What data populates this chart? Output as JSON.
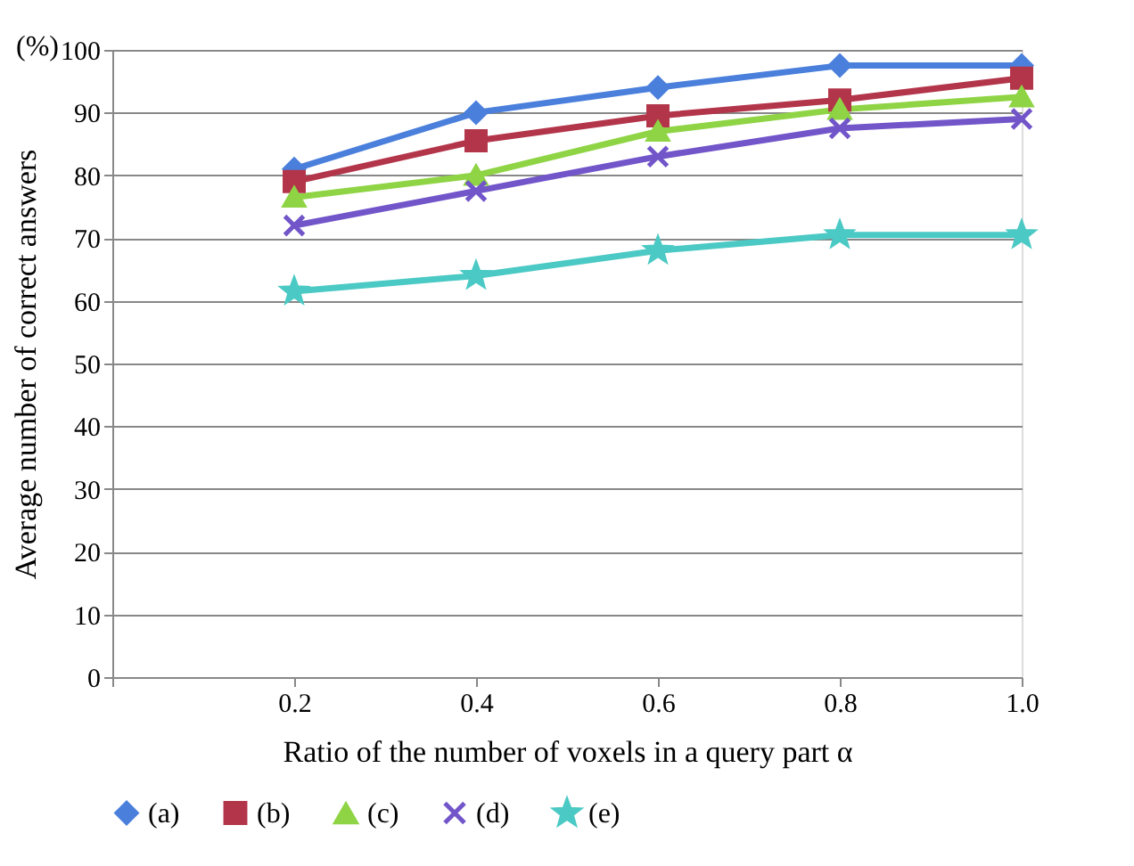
{
  "chart_data": {
    "type": "line",
    "xlabel": "Ratio of the number of voxels in a query part  α",
    "ylabel": "Average number of correct answers",
    "annotations": [
      "(%)"
    ],
    "x": [
      0.2,
      0.4,
      0.6,
      0.8,
      1.0
    ],
    "xlim": [
      0,
      1.0
    ],
    "xticks": [
      {
        "value": 0,
        "label": null
      },
      {
        "value": 0.2,
        "label": "0.2"
      },
      {
        "value": 0.4,
        "label": "0.4"
      },
      {
        "value": 0.6,
        "label": "0.6"
      },
      {
        "value": 0.8,
        "label": "0.8"
      },
      {
        "value": 1.0,
        "label": "1.0"
      }
    ],
    "ylim": [
      0,
      100
    ],
    "yticks": [
      0,
      10,
      20,
      30,
      40,
      50,
      60,
      70,
      80,
      90,
      100
    ],
    "grid": "y",
    "legend": "bottom",
    "line_style": "solid",
    "series": [
      {
        "name": "(a)",
        "color": "#4a7fdc",
        "marker": "diamond",
        "values": [
          81,
          90,
          94,
          97.5,
          97.5
        ]
      },
      {
        "name": "(b)",
        "color": "#b3354a",
        "marker": "square",
        "values": [
          79,
          85.5,
          89.5,
          92,
          95.5
        ]
      },
      {
        "name": "(c)",
        "color": "#8fd444",
        "marker": "triangle",
        "values": [
          76.5,
          80,
          87,
          90.5,
          92.5
        ]
      },
      {
        "name": "(d)",
        "color": "#7155c9",
        "marker": "cross",
        "values": [
          72,
          77.5,
          83,
          87.5,
          89
        ]
      },
      {
        "name": "(e)",
        "color": "#4bc9c4",
        "marker": "star",
        "values": [
          61.5,
          64,
          68,
          70.5,
          70.5
        ]
      }
    ]
  }
}
